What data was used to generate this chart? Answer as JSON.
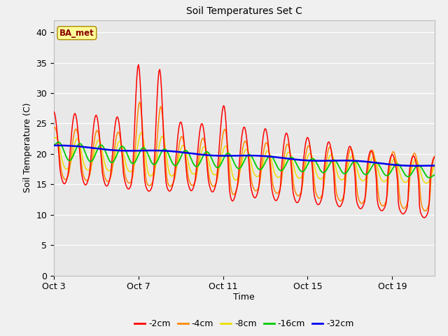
{
  "title": "Soil Temperatures Set C",
  "xlabel": "Time",
  "ylabel": "Soil Temperature (C)",
  "ylim": [
    0,
    42
  ],
  "yticks": [
    0,
    5,
    10,
    15,
    20,
    25,
    30,
    35,
    40
  ],
  "x_tick_labels": [
    "Oct 3",
    "Oct 7",
    "Oct 11",
    "Oct 15",
    "Oct 19"
  ],
  "x_tick_positions": [
    0,
    4,
    8,
    12,
    16
  ],
  "series_colors": [
    "#ff0000",
    "#ff8800",
    "#eedd00",
    "#00cc00",
    "#0000ee"
  ],
  "series_labels": [
    "-2cm",
    "-4cm",
    "-8cm",
    "-16cm",
    "-32cm"
  ],
  "fig_bg_color": "#f0f0f0",
  "plot_bg_color": "#e8e8e8",
  "annotation_text": "BA_met",
  "annotation_bg": "#ffff99",
  "annotation_border": "#aa8800",
  "grid_color": "#ffffff",
  "title_fontsize": 10,
  "axis_fontsize": 9,
  "legend_fontsize": 9
}
